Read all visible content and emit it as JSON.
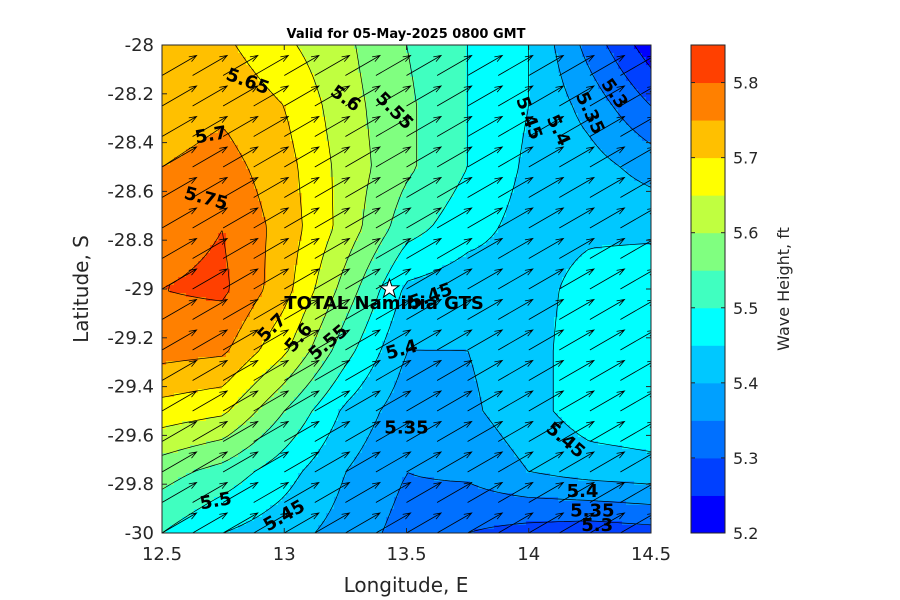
{
  "chart_data": {
    "type": "heatmap",
    "subtype": "filled-contour-with-vectors",
    "title": "Valid for 05-May-2025 0800 GMT",
    "xlabel": "Longitude, E",
    "ylabel": "Latitude, S",
    "colorbar_label": "Wave Height, ft",
    "xlim": [
      12.5,
      14.5
    ],
    "ylim": [
      -30,
      -28
    ],
    "x_ticks": [
      12.5,
      13,
      13.5,
      14,
      14.5
    ],
    "x_tick_labels": [
      "12.5",
      "13",
      "13.5",
      "14",
      "14.5"
    ],
    "y_ticks": [
      -28,
      -28.2,
      -28.4,
      -28.6,
      -28.8,
      -29,
      -29.2,
      -29.4,
      -29.6,
      -29.8,
      -30
    ],
    "y_tick_labels": [
      "-28",
      "-28.2",
      "-28.4",
      "-28.6",
      "-28.8",
      "-29",
      "-29.2",
      "-29.4",
      "-29.6",
      "-29.8",
      "-30"
    ],
    "colorbar_range": [
      5.2,
      5.85
    ],
    "colorbar_ticks": [
      5.2,
      5.3,
      5.4,
      5.5,
      5.6,
      5.7,
      5.8
    ],
    "colorbar_tick_labels": [
      "5.2",
      "5.3",
      "5.4",
      "5.5",
      "5.6",
      "5.7",
      "5.8"
    ],
    "contour_levels": [
      5.2,
      5.25,
      5.3,
      5.35,
      5.4,
      5.45,
      5.5,
      5.55,
      5.6,
      5.65,
      5.7,
      5.75,
      5.8,
      5.85
    ],
    "level_colors": [
      "#0000ff",
      "#0040ff",
      "#0070ff",
      "#00a0ff",
      "#00c8ff",
      "#00ffff",
      "#40ffc0",
      "#80ff80",
      "#c0ff40",
      "#ffff00",
      "#ffc000",
      "#ff8000",
      "#ff4000",
      "#ff0000"
    ],
    "grid": "off",
    "x": [
      12.5,
      12.75,
      13.0,
      13.25,
      13.5,
      13.75,
      14.0,
      14.25,
      14.5
    ],
    "y": [
      -28.0,
      -28.25,
      -28.5,
      -28.75,
      -29.0,
      -29.25,
      -29.5,
      -29.75,
      -30.0
    ],
    "z": [
      [
        5.7,
        5.71,
        5.66,
        5.61,
        5.55,
        5.5,
        5.45,
        5.33,
        5.22
      ],
      [
        5.72,
        5.74,
        5.7,
        5.62,
        5.56,
        5.5,
        5.45,
        5.38,
        5.3
      ],
      [
        5.75,
        5.77,
        5.72,
        5.63,
        5.56,
        5.5,
        5.44,
        5.42,
        5.38
      ],
      [
        5.78,
        5.8,
        5.73,
        5.63,
        5.52,
        5.47,
        5.43,
        5.44,
        5.44
      ],
      [
        5.8,
        5.81,
        5.72,
        5.58,
        5.44,
        5.42,
        5.43,
        5.47,
        5.48
      ],
      [
        5.77,
        5.76,
        5.66,
        5.52,
        5.4,
        5.4,
        5.43,
        5.48,
        5.5
      ],
      [
        5.68,
        5.66,
        5.55,
        5.44,
        5.37,
        5.39,
        5.43,
        5.48,
        5.49
      ],
      [
        5.57,
        5.53,
        5.47,
        5.4,
        5.35,
        5.36,
        5.4,
        5.42,
        5.43
      ],
      [
        5.5,
        5.45,
        5.42,
        5.38,
        5.33,
        5.3,
        5.28,
        5.27,
        5.28
      ]
    ],
    "vector_direction_deg": 30,
    "contour_labels": [
      {
        "text": "5.65",
        "lon": 12.85,
        "lat": -28.15,
        "angle": 20
      },
      {
        "text": "5.6",
        "lon": 13.25,
        "lat": -28.22,
        "angle": 35
      },
      {
        "text": "5.55",
        "lon": 13.45,
        "lat": -28.27,
        "angle": 45
      },
      {
        "text": "5.7",
        "lon": 12.7,
        "lat": -28.37,
        "angle": -10
      },
      {
        "text": "5.75",
        "lon": 12.68,
        "lat": -28.63,
        "angle": 15
      },
      {
        "text": "5.45",
        "lon": 14.0,
        "lat": -28.3,
        "angle": 70
      },
      {
        "text": "5.4",
        "lon": 14.12,
        "lat": -28.35,
        "angle": 65
      },
      {
        "text": "5.35",
        "lon": 14.25,
        "lat": -28.28,
        "angle": 65
      },
      {
        "text": "5.3",
        "lon": 14.35,
        "lat": -28.2,
        "angle": 55
      },
      {
        "text": "5.7",
        "lon": 12.95,
        "lat": -29.16,
        "angle": -45
      },
      {
        "text": "5.6",
        "lon": 13.06,
        "lat": -29.2,
        "angle": -50
      },
      {
        "text": "5.55",
        "lon": 13.18,
        "lat": -29.22,
        "angle": -40
      },
      {
        "text": "5.45",
        "lon": 13.6,
        "lat": -29.03,
        "angle": -20
      },
      {
        "text": "5.4",
        "lon": 13.48,
        "lat": -29.25,
        "angle": -15
      },
      {
        "text": "5.35",
        "lon": 13.5,
        "lat": -29.57,
        "angle": 0
      },
      {
        "text": "5.45",
        "lon": 14.15,
        "lat": -29.62,
        "angle": 40
      },
      {
        "text": "5.5",
        "lon": 12.72,
        "lat": -29.87,
        "angle": -10
      },
      {
        "text": "5.45",
        "lon": 13.0,
        "lat": -29.93,
        "angle": -30
      },
      {
        "text": "5.4",
        "lon": 14.22,
        "lat": -29.83,
        "angle": 0
      },
      {
        "text": "5.35",
        "lon": 14.26,
        "lat": -29.91,
        "angle": 0
      },
      {
        "text": "5.3",
        "lon": 14.28,
        "lat": -29.97,
        "angle": 0
      }
    ],
    "site": {
      "name": "TOTAL Namibia GTS",
      "lon": 13.43,
      "lat": -29.0
    }
  }
}
